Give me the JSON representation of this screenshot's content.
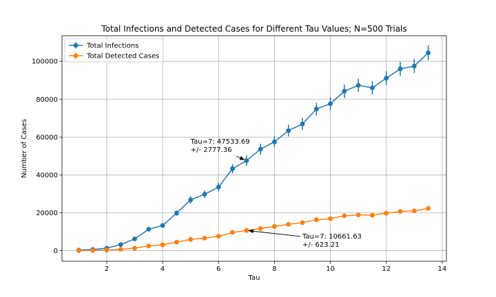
{
  "chart_data": {
    "type": "line",
    "title": "Total Infections and Detected Cases for Different Tau Values; N=500 Trials",
    "xlabel": "Tau",
    "ylabel": "Number of Cases",
    "xlim": [
      0.4,
      14.15
    ],
    "ylim": [
      -5600,
      113500
    ],
    "xticks": [
      2,
      4,
      6,
      8,
      10,
      12,
      14
    ],
    "xtick_labels": [
      "2",
      "4",
      "6",
      "8",
      "10",
      "12",
      "14"
    ],
    "yticks": [
      0,
      20000,
      40000,
      60000,
      80000,
      100000
    ],
    "ytick_labels": [
      "0",
      "20000",
      "40000",
      "60000",
      "80000",
      "100000"
    ],
    "grid": true,
    "legend_position": "top-left",
    "x": [
      1,
      1.5,
      2,
      2.5,
      3,
      3.5,
      4,
      4.5,
      5,
      5.5,
      6,
      6.5,
      7,
      7.5,
      8,
      8.5,
      9,
      9.5,
      10,
      10.5,
      11,
      11.5,
      12,
      12.5,
      13,
      13.5
    ],
    "series": [
      {
        "name": "Total Infections",
        "color": "#1f77b4",
        "values": [
          300,
          600,
          1300,
          3200,
          6200,
          11300,
          13300,
          19800,
          26800,
          29800,
          33600,
          43300,
          47533.69,
          53600,
          57500,
          63400,
          66900,
          74800,
          77600,
          84200,
          87300,
          86000,
          91100,
          96000,
          97500,
          104500
        ],
        "errors": [
          300,
          300,
          400,
          500,
          600,
          900,
          1100,
          1400,
          1900,
          1900,
          2300,
          2500,
          2777.36,
          2900,
          3000,
          3100,
          3200,
          3300,
          3500,
          3500,
          3500,
          3500,
          3600,
          3700,
          3700,
          3900
        ]
      },
      {
        "name": "Total Detected Cases",
        "color": "#ff7f0e",
        "values": [
          0,
          100,
          300,
          700,
          1300,
          2500,
          3100,
          4500,
          5900,
          6600,
          7600,
          9600,
          10661.63,
          11700,
          12800,
          13900,
          14800,
          16300,
          16900,
          18400,
          18900,
          18700,
          19800,
          20700,
          21000,
          22300
        ],
        "errors": [
          50,
          60,
          100,
          150,
          200,
          300,
          350,
          400,
          450,
          450,
          500,
          550,
          623.21,
          650,
          650,
          700,
          700,
          750,
          750,
          800,
          800,
          800,
          850,
          850,
          850,
          900
        ]
      }
    ],
    "annotations": [
      {
        "line1": "Tau=7: 47533.69",
        "line2": "+/- 2777.36",
        "point": [
          7,
          47533.69
        ],
        "text_at": [
          5.0,
          55000
        ]
      },
      {
        "line1": "Tau=7: 10661.63",
        "line2": "+/- 623.21",
        "point": [
          7,
          10661.63
        ],
        "text_at": [
          9.0,
          5000
        ]
      }
    ]
  }
}
